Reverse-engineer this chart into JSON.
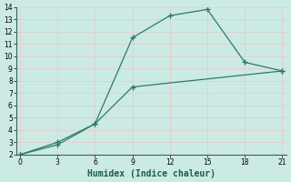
{
  "xlabel": "Humidex (Indice chaleur)",
  "bg_color": "#cceae4",
  "grid_color": "#e8c8c8",
  "line_color": "#2d7a6a",
  "line1_x": [
    0,
    3,
    6,
    9,
    12,
    15,
    18,
    21
  ],
  "line1_y": [
    2,
    3.0,
    4.5,
    11.5,
    13.3,
    13.8,
    9.5,
    8.8
  ],
  "line2_x": [
    0,
    3,
    6,
    9,
    21
  ],
  "line2_y": [
    2,
    2.8,
    4.5,
    7.5,
    8.8
  ],
  "xlim": [
    -0.3,
    21.3
  ],
  "ylim": [
    2,
    14
  ],
  "xticks": [
    0,
    3,
    6,
    9,
    12,
    15,
    18,
    21
  ],
  "yticks": [
    2,
    3,
    4,
    5,
    6,
    7,
    8,
    9,
    10,
    11,
    12,
    13,
    14
  ],
  "marker": "+",
  "marker_size": 4,
  "linewidth": 0.9,
  "tick_fontsize": 5.5,
  "xlabel_fontsize": 7.0
}
